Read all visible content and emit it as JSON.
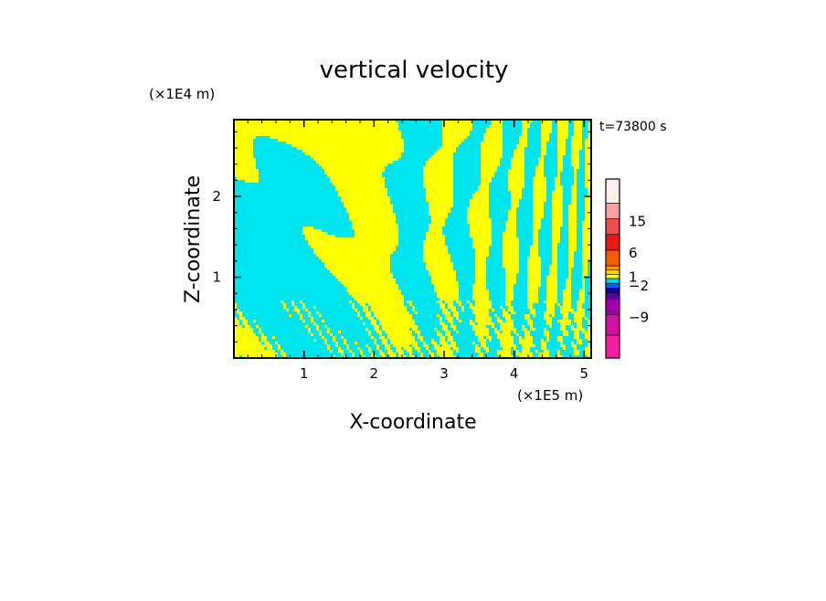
{
  "chart_data": {
    "type": "heatmap",
    "title": "vertical velocity",
    "xlabel": "X-coordinate",
    "ylabel": "Z-coordinate",
    "x_unit": "(×1E5 m)",
    "y_unit": "(×1E4 m)",
    "time_label": "t=73800 s",
    "xlim": [
      0,
      5.1
    ],
    "ylim": [
      0,
      2.95
    ],
    "x_ticks": [
      1,
      2,
      3,
      4,
      5
    ],
    "y_ticks": [
      1,
      2
    ],
    "x_tick_labels": [
      "1",
      "2",
      "3",
      "4",
      "5"
    ],
    "y_tick_labels": [
      "1",
      "2"
    ],
    "colors": {
      "positive_field": "#ffff00",
      "negative_field": "#00e5ee",
      "frame": "#000000"
    },
    "colorbar": {
      "levels": [
        {
          "color": "#f020a0"
        },
        {
          "color": "#d010a0"
        },
        {
          "color": "#a000a8"
        },
        {
          "color": "#5a009c"
        },
        {
          "color": "#1a009a"
        },
        {
          "color": "#1060ff"
        },
        {
          "color": "#00d8f0"
        },
        {
          "color": "#ffff00"
        },
        {
          "color": "#ffd200"
        },
        {
          "color": "#ff9a00"
        },
        {
          "color": "#f06000"
        },
        {
          "color": "#e81818"
        },
        {
          "color": "#ee5050"
        },
        {
          "color": "#f3a3a3"
        },
        {
          "color": "#fff0f0"
        }
      ],
      "tick_labels": [
        {
          "text": "15",
          "value": 15
        },
        {
          "text": "6",
          "value": 6
        },
        {
          "text": "1",
          "value": 1
        },
        {
          "text": "−2",
          "value": -2
        },
        {
          "text": "−9",
          "value": -9
        }
      ]
    }
  }
}
